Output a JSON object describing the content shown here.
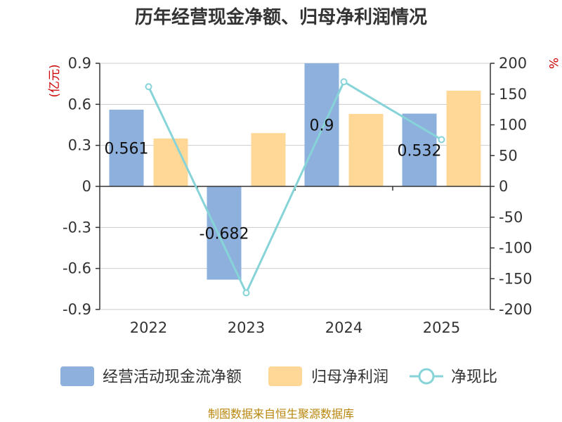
{
  "chart_data": {
    "type": "bar",
    "title": "历年经营现金净额、归母净利润情况",
    "categories": [
      "2022",
      "2023",
      "2024",
      "2025"
    ],
    "left_axis": {
      "unit": "(亿元)",
      "ylim": [
        -0.9,
        0.9
      ],
      "ticks": [
        {
          "v": 0.9,
          "t": "0.9"
        },
        {
          "v": 0.6,
          "t": "0.6"
        },
        {
          "v": 0.3,
          "t": "0.3"
        },
        {
          "v": 0,
          "t": "0"
        },
        {
          "v": -0.3,
          "t": "-0.3"
        },
        {
          "v": -0.6,
          "t": "-0.6"
        },
        {
          "v": -0.9,
          "t": "-0.9"
        }
      ]
    },
    "right_axis": {
      "unit": "%",
      "ylim": [
        -200,
        200
      ],
      "ticks": [
        {
          "v": 200,
          "t": "200"
        },
        {
          "v": 150,
          "t": "150"
        },
        {
          "v": 100,
          "t": "100"
        },
        {
          "v": 50,
          "t": "50"
        },
        {
          "v": 0,
          "t": "0"
        },
        {
          "v": -50,
          "t": "-50"
        },
        {
          "v": -100,
          "t": "-100"
        },
        {
          "v": -150,
          "t": "-150"
        },
        {
          "v": -200,
          "t": "-200"
        }
      ]
    },
    "grid": true,
    "series": [
      {
        "name": "经营活动现金流净额",
        "kind": "bar",
        "axis": "left",
        "color": "#8eb0dc",
        "values": [
          0.561,
          -0.682,
          0.9,
          0.532
        ],
        "labels": [
          "0.561",
          "-0.682",
          "0.9",
          "0.532"
        ]
      },
      {
        "name": "归母净利润",
        "kind": "bar",
        "axis": "left",
        "color": "#ffd898",
        "values": [
          0.35,
          0.39,
          0.53,
          0.7
        ]
      },
      {
        "name": "净现比",
        "kind": "line",
        "axis": "right",
        "color": "#86d4d8",
        "values": [
          162,
          -173,
          170,
          76
        ]
      }
    ],
    "legend_position": "bottom"
  },
  "footer": {
    "source": "制图数据来自恒生聚源数据库"
  }
}
